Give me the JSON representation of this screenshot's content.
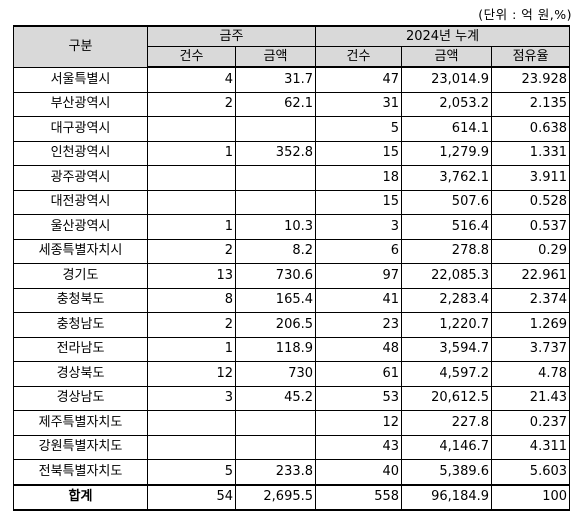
{
  "unit_note": "(단위 : 억 원,%)",
  "header": {
    "gubun": "구분",
    "weekly": "금주",
    "cumulative": "2024년 누계",
    "count": "건수",
    "amount": "금액",
    "count2": "건수",
    "amount2": "금액",
    "share": "점유율"
  },
  "rows": [
    {
      "region": "서울특별시",
      "w_count": "4",
      "w_amount": "31.7",
      "c_count": "47",
      "c_amount": "23,014.9",
      "share": "23.928"
    },
    {
      "region": "부산광역시",
      "w_count": "2",
      "w_amount": "62.1",
      "c_count": "31",
      "c_amount": "2,053.2",
      "share": "2.135"
    },
    {
      "region": "대구광역시",
      "w_count": "",
      "w_amount": "",
      "c_count": "5",
      "c_amount": "614.1",
      "share": "0.638"
    },
    {
      "region": "인천광역시",
      "w_count": "1",
      "w_amount": "352.8",
      "c_count": "15",
      "c_amount": "1,279.9",
      "share": "1.331"
    },
    {
      "region": "광주광역시",
      "w_count": "",
      "w_amount": "",
      "c_count": "18",
      "c_amount": "3,762.1",
      "share": "3.911"
    },
    {
      "region": "대전광역시",
      "w_count": "",
      "w_amount": "",
      "c_count": "15",
      "c_amount": "507.6",
      "share": "0.528"
    },
    {
      "region": "울산광역시",
      "w_count": "1",
      "w_amount": "10.3",
      "c_count": "3",
      "c_amount": "516.4",
      "share": "0.537"
    },
    {
      "region": "세종특별자치시",
      "w_count": "2",
      "w_amount": "8.2",
      "c_count": "6",
      "c_amount": "278.8",
      "share": "0.29"
    },
    {
      "region": "경기도",
      "w_count": "13",
      "w_amount": "730.6",
      "c_count": "97",
      "c_amount": "22,085.3",
      "share": "22.961"
    },
    {
      "region": "충청북도",
      "w_count": "8",
      "w_amount": "165.4",
      "c_count": "41",
      "c_amount": "2,283.4",
      "share": "2.374"
    },
    {
      "region": "충청남도",
      "w_count": "2",
      "w_amount": "206.5",
      "c_count": "23",
      "c_amount": "1,220.7",
      "share": "1.269"
    },
    {
      "region": "전라남도",
      "w_count": "1",
      "w_amount": "118.9",
      "c_count": "48",
      "c_amount": "3,594.7",
      "share": "3.737"
    },
    {
      "region": "경상북도",
      "w_count": "12",
      "w_amount": "730",
      "c_count": "61",
      "c_amount": "4,597.2",
      "share": "4.78"
    },
    {
      "region": "경상남도",
      "w_count": "3",
      "w_amount": "45.2",
      "c_count": "53",
      "c_amount": "20,612.5",
      "share": "21.43"
    },
    {
      "region": "제주특별자치도",
      "w_count": "",
      "w_amount": "",
      "c_count": "12",
      "c_amount": "227.8",
      "share": "0.237"
    },
    {
      "region": "강원특별자치도",
      "w_count": "",
      "w_amount": "",
      "c_count": "43",
      "c_amount": "4,146.7",
      "share": "4.311"
    },
    {
      "region": "전북특별자치도",
      "w_count": "5",
      "w_amount": "233.8",
      "c_count": "40",
      "c_amount": "5,389.6",
      "share": "5.603"
    }
  ],
  "total": {
    "region": "합계",
    "w_count": "54",
    "w_amount": "2,695.5",
    "c_count": "558",
    "c_amount": "96,184.9",
    "share": "100"
  }
}
